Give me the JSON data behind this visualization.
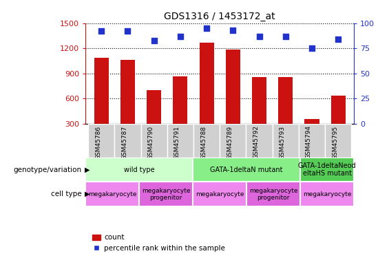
{
  "title": "GDS1316 / 1453172_at",
  "samples": [
    "GSM45786",
    "GSM45787",
    "GSM45790",
    "GSM45791",
    "GSM45788",
    "GSM45789",
    "GSM45792",
    "GSM45793",
    "GSM45794",
    "GSM45795"
  ],
  "counts": [
    1090,
    1060,
    700,
    870,
    1270,
    1185,
    855,
    855,
    360,
    635
  ],
  "percentiles": [
    92,
    92,
    83,
    87,
    95,
    93,
    87,
    87,
    75,
    84
  ],
  "ylim_left": [
    300,
    1500
  ],
  "ylim_right": [
    0,
    100
  ],
  "yticks_left": [
    300,
    600,
    900,
    1200,
    1500
  ],
  "yticks_right": [
    0,
    25,
    50,
    75,
    100
  ],
  "bar_color": "#cc1111",
  "dot_color": "#2233cc",
  "genotype_groups": [
    {
      "label": "wild type",
      "start": 0,
      "end": 4,
      "color": "#ccffcc"
    },
    {
      "label": "GATA-1deltaN mutant",
      "start": 4,
      "end": 8,
      "color": "#88ee88"
    },
    {
      "label": "GATA-1deltaNeod\neltaHS mutant",
      "start": 8,
      "end": 10,
      "color": "#55cc55"
    }
  ],
  "celltype_groups": [
    {
      "label": "megakaryocyte",
      "start": 0,
      "end": 2,
      "color": "#ee88ee"
    },
    {
      "label": "megakaryocyte\nprogenitor",
      "start": 2,
      "end": 4,
      "color": "#dd66dd"
    },
    {
      "label": "megakaryocyte",
      "start": 4,
      "end": 6,
      "color": "#ee88ee"
    },
    {
      "label": "megakaryocyte\nprogenitor",
      "start": 6,
      "end": 8,
      "color": "#dd66dd"
    },
    {
      "label": "megakaryocyte",
      "start": 8,
      "end": 10,
      "color": "#ee88ee"
    }
  ],
  "left_label_geno": "genotype/variation",
  "left_label_cell": "cell type",
  "legend_count_label": "count",
  "legend_pct_label": "percentile rank within the sample",
  "dot_size": 40,
  "bar_width": 0.55
}
